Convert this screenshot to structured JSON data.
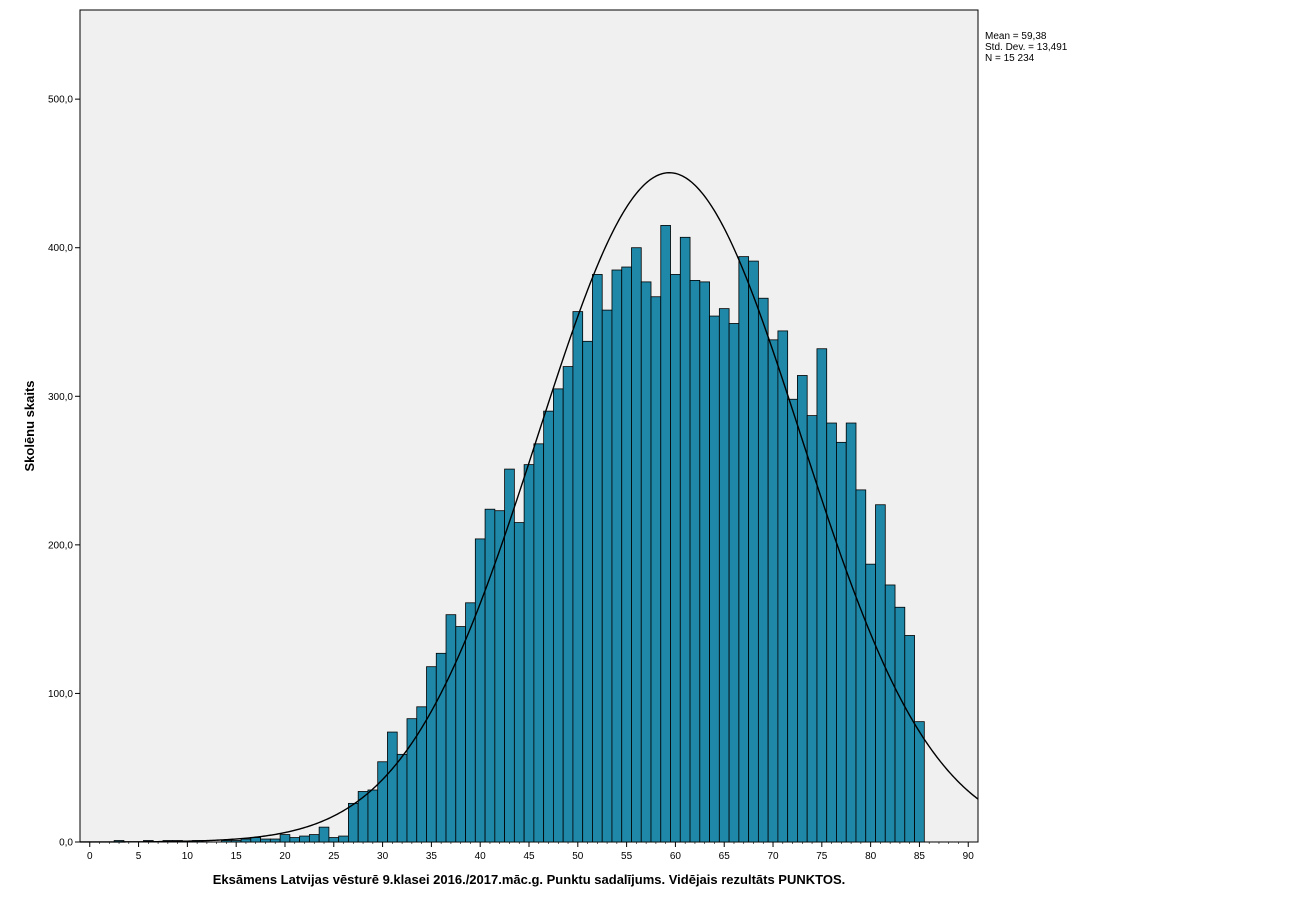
{
  "chart_data": {
    "type": "bar",
    "subtype": "histogram",
    "xlabel": "Eksāmens Latvijas vēsturē 9.klasei 2016./2017.māc.g. Punktu sadalījums. Vidējais rezultāts PUNKTOS.",
    "ylabel": "Skolēnu skaits",
    "xlim": [
      -1,
      91
    ],
    "ylim": [
      0,
      560
    ],
    "x_ticks": [
      "0",
      "5",
      "10",
      "15",
      "20",
      "25",
      "30",
      "35",
      "40",
      "45",
      "50",
      "55",
      "60",
      "65",
      "70",
      "75",
      "80",
      "85",
      "90"
    ],
    "y_ticks": [
      "0,0",
      "100,0",
      "200,0",
      "300,0",
      "400,0",
      "500,0"
    ],
    "grid": false,
    "bar_color": "#1f88a8",
    "bar_edge_color": "#000000",
    "plot_background": "#f0f0f0",
    "normal_curve": {
      "mean": 59.38,
      "std": 13.491,
      "n": 15234,
      "bin_width": 1
    },
    "stats": [
      "Mean = 59,38",
      "Std. Dev. = 13,491",
      "N = 15 234"
    ],
    "bins": [
      {
        "x": 3,
        "count": 1
      },
      {
        "x": 6,
        "count": 1
      },
      {
        "x": 8,
        "count": 1
      },
      {
        "x": 9,
        "count": 1
      },
      {
        "x": 11,
        "count": 1
      },
      {
        "x": 14,
        "count": 1
      },
      {
        "x": 15,
        "count": 1
      },
      {
        "x": 16,
        "count": 2
      },
      {
        "x": 17,
        "count": 3
      },
      {
        "x": 18,
        "count": 2
      },
      {
        "x": 19,
        "count": 2
      },
      {
        "x": 20,
        "count": 5
      },
      {
        "x": 21,
        "count": 3
      },
      {
        "x": 22,
        "count": 4
      },
      {
        "x": 23,
        "count": 5
      },
      {
        "x": 24,
        "count": 10
      },
      {
        "x": 25,
        "count": 3
      },
      {
        "x": 26,
        "count": 4
      },
      {
        "x": 27,
        "count": 26
      },
      {
        "x": 28,
        "count": 34
      },
      {
        "x": 29,
        "count": 35
      },
      {
        "x": 30,
        "count": 54
      },
      {
        "x": 31,
        "count": 74
      },
      {
        "x": 32,
        "count": 59
      },
      {
        "x": 33,
        "count": 83
      },
      {
        "x": 34,
        "count": 91
      },
      {
        "x": 35,
        "count": 118
      },
      {
        "x": 36,
        "count": 127
      },
      {
        "x": 37,
        "count": 153
      },
      {
        "x": 38,
        "count": 145
      },
      {
        "x": 39,
        "count": 161
      },
      {
        "x": 40,
        "count": 204
      },
      {
        "x": 41,
        "count": 224
      },
      {
        "x": 42,
        "count": 223
      },
      {
        "x": 43,
        "count": 251
      },
      {
        "x": 44,
        "count": 215
      },
      {
        "x": 45,
        "count": 254
      },
      {
        "x": 46,
        "count": 268
      },
      {
        "x": 47,
        "count": 290
      },
      {
        "x": 48,
        "count": 305
      },
      {
        "x": 49,
        "count": 320
      },
      {
        "x": 50,
        "count": 357
      },
      {
        "x": 51,
        "count": 337
      },
      {
        "x": 52,
        "count": 382
      },
      {
        "x": 53,
        "count": 358
      },
      {
        "x": 54,
        "count": 385
      },
      {
        "x": 55,
        "count": 387
      },
      {
        "x": 56,
        "count": 400
      },
      {
        "x": 57,
        "count": 377
      },
      {
        "x": 58,
        "count": 367
      },
      {
        "x": 59,
        "count": 415
      },
      {
        "x": 60,
        "count": 382
      },
      {
        "x": 61,
        "count": 407
      },
      {
        "x": 62,
        "count": 378
      },
      {
        "x": 63,
        "count": 377
      },
      {
        "x": 64,
        "count": 354
      },
      {
        "x": 65,
        "count": 359
      },
      {
        "x": 66,
        "count": 349
      },
      {
        "x": 67,
        "count": 394
      },
      {
        "x": 68,
        "count": 391
      },
      {
        "x": 69,
        "count": 366
      },
      {
        "x": 70,
        "count": 338
      },
      {
        "x": 71,
        "count": 344
      },
      {
        "x": 72,
        "count": 298
      },
      {
        "x": 73,
        "count": 314
      },
      {
        "x": 74,
        "count": 287
      },
      {
        "x": 75,
        "count": 332
      },
      {
        "x": 76,
        "count": 282
      },
      {
        "x": 77,
        "count": 269
      },
      {
        "x": 78,
        "count": 282
      },
      {
        "x": 79,
        "count": 237
      },
      {
        "x": 80,
        "count": 187
      },
      {
        "x": 81,
        "count": 227
      },
      {
        "x": 82,
        "count": 173
      },
      {
        "x": 83,
        "count": 158
      },
      {
        "x": 84,
        "count": 139
      },
      {
        "x": 85,
        "count": 81
      }
    ]
  }
}
